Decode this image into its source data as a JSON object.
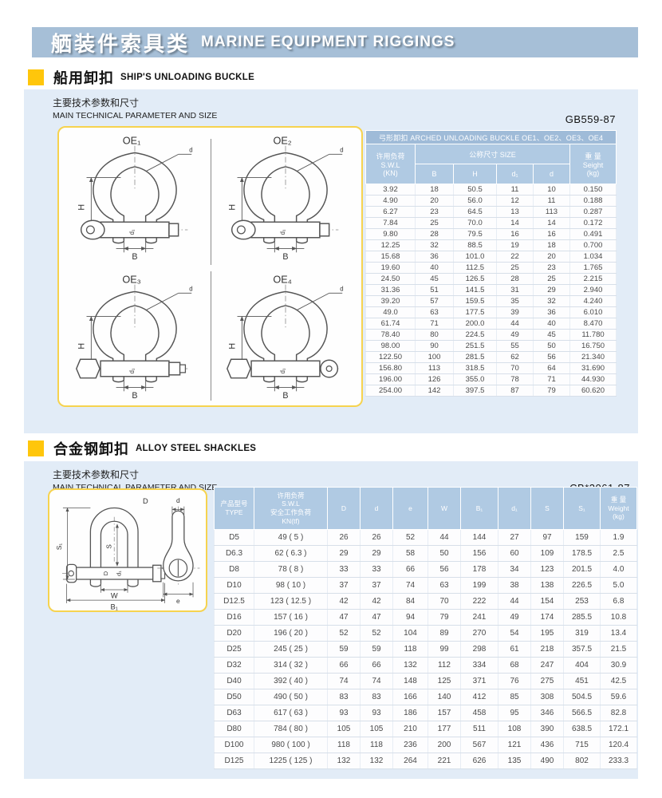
{
  "header": {
    "title_zh": "舾装件索具类",
    "title_en": "MARINE EQUIPMENT RIGGINGS"
  },
  "section1": {
    "heading_zh": "船用卸扣",
    "heading_en": "SHIP'S UNLOADING BUCKLE",
    "param_zh": "主要技术参数和尺寸",
    "param_en": "MAIN TECHNICAL PARAMETER AND SIZE",
    "standard": "GB559-87",
    "diagrams": {
      "labels": [
        "OE₁",
        "OE₂",
        "OE₃",
        "OE₄"
      ],
      "dims": {
        "h": "H",
        "b": "B",
        "d": "d",
        "d1": "d₁"
      }
    },
    "table": {
      "title": "弓形卸扣 ARCHED UNLOADING BUCKLE OE1、OE2、OE3、OE4",
      "swl_header": "许用负荷\nS.W.L\n(KN)",
      "size_header": "公称尺寸  SIZE",
      "size_cols": [
        "B",
        "H",
        "d₁",
        "d"
      ],
      "weight_header": "重 量\nSeight\n(kg)",
      "rows": [
        [
          "3.92",
          "18",
          "50.5",
          "11",
          "10",
          "0.150"
        ],
        [
          "4.90",
          "20",
          "56.0",
          "12",
          "11",
          "0.188"
        ],
        [
          "6.27",
          "23",
          "64.5",
          "13",
          "113",
          "0.287"
        ],
        [
          "7.84",
          "25",
          "70.0",
          "14",
          "14",
          "0.172"
        ],
        [
          "9.80",
          "28",
          "79.5",
          "16",
          "16",
          "0.491"
        ],
        [
          "12.25",
          "32",
          "88.5",
          "19",
          "18",
          "0.700"
        ],
        [
          "15.68",
          "36",
          "101.0",
          "22",
          "20",
          "1.034"
        ],
        [
          "19.60",
          "40",
          "112.5",
          "25",
          "23",
          "1.765"
        ],
        [
          "24.50",
          "45",
          "126.5",
          "28",
          "25",
          "2.215"
        ],
        [
          "31.36",
          "51",
          "141.5",
          "31",
          "29",
          "2.940"
        ],
        [
          "39.20",
          "57",
          "159.5",
          "35",
          "32",
          "4.240"
        ],
        [
          "49.0",
          "63",
          "177.5",
          "39",
          "36",
          "6.010"
        ],
        [
          "61.74",
          "71",
          "200.0",
          "44",
          "40",
          "8.470"
        ],
        [
          "78.40",
          "80",
          "224.5",
          "49",
          "45",
          "11.780"
        ],
        [
          "98.00",
          "90",
          "251.5",
          "55",
          "50",
          "16.750"
        ],
        [
          "122.50",
          "100",
          "281.5",
          "62",
          "56",
          "21.340"
        ],
        [
          "156.80",
          "113",
          "318.5",
          "70",
          "64",
          "31.690"
        ],
        [
          "196.00",
          "126",
          "355.0",
          "78",
          "71",
          "44.930"
        ],
        [
          "254.00",
          "142",
          "397.5",
          "87",
          "79",
          "60.620"
        ]
      ]
    }
  },
  "section2": {
    "heading_zh": "合金钢卸扣",
    "heading_en": "ALLOY STEEL SHACKLES",
    "param_zh": "主要技术参数和尺寸",
    "param_en": "MAIN TECHNICAL PARAMETER AND SIZE",
    "standard": "CB*3061-87",
    "diagram": {
      "dims": {
        "cap_d": "D",
        "d": "d",
        "s1": "S₁",
        "s": "S",
        "w": "W",
        "b1": "B₁",
        "e": "e",
        "d1": "d₁"
      }
    },
    "table": {
      "type_header": "产品型号\nTYPE",
      "swl_header": "许用负荷\nS.W.L\n安全工作负荷\nKN(tf)",
      "dim_cols": [
        "D",
        "d",
        "e",
        "W",
        "B₁",
        "d₁",
        "S",
        "S₁"
      ],
      "weight_header": "重 量\nWeight\n(kg)",
      "rows": [
        [
          "D5",
          "49 ( 5 )",
          "26",
          "26",
          "52",
          "44",
          "144",
          "27",
          "97",
          "159",
          "1.9"
        ],
        [
          "D6.3",
          "62 ( 6.3 )",
          "29",
          "29",
          "58",
          "50",
          "156",
          "60",
          "109",
          "178.5",
          "2.5"
        ],
        [
          "D8",
          "78 ( 8 )",
          "33",
          "33",
          "66",
          "56",
          "178",
          "34",
          "123",
          "201.5",
          "4.0"
        ],
        [
          "D10",
          "98 ( 10 )",
          "37",
          "37",
          "74",
          "63",
          "199",
          "38",
          "138",
          "226.5",
          "5.0"
        ],
        [
          "D12.5",
          "123 ( 12.5 )",
          "42",
          "42",
          "84",
          "70",
          "222",
          "44",
          "154",
          "253",
          "6.8"
        ],
        [
          "D16",
          "157 ( 16 )",
          "47",
          "47",
          "94",
          "79",
          "241",
          "49",
          "174",
          "285.5",
          "10.8"
        ],
        [
          "D20",
          "196 ( 20 )",
          "52",
          "52",
          "104",
          "89",
          "270",
          "54",
          "195",
          "319",
          "13.4"
        ],
        [
          "D25",
          "245 ( 25 )",
          "59",
          "59",
          "118",
          "99",
          "298",
          "61",
          "218",
          "357.5",
          "21.5"
        ],
        [
          "D32",
          "314 ( 32 )",
          "66",
          "66",
          "132",
          "112",
          "334",
          "68",
          "247",
          "404",
          "30.9"
        ],
        [
          "D40",
          "392 ( 40 )",
          "74",
          "74",
          "148",
          "125",
          "371",
          "76",
          "275",
          "451",
          "42.5"
        ],
        [
          "D50",
          "490 ( 50 )",
          "83",
          "83",
          "166",
          "140",
          "412",
          "85",
          "308",
          "504.5",
          "59.6"
        ],
        [
          "D63",
          "617 ( 63 )",
          "93",
          "93",
          "186",
          "157",
          "458",
          "95",
          "346",
          "566.5",
          "82.8"
        ],
        [
          "D80",
          "784 ( 80 )",
          "105",
          "105",
          "210",
          "177",
          "511",
          "108",
          "390",
          "638.5",
          "172.1"
        ],
        [
          "D100",
          "980 ( 100 )",
          "118",
          "118",
          "236",
          "200",
          "567",
          "121",
          "436",
          "715",
          "120.4"
        ],
        [
          "D125",
          "1225 ( 125 )",
          "132",
          "132",
          "264",
          "221",
          "626",
          "135",
          "490",
          "802",
          "233.3"
        ]
      ]
    }
  }
}
